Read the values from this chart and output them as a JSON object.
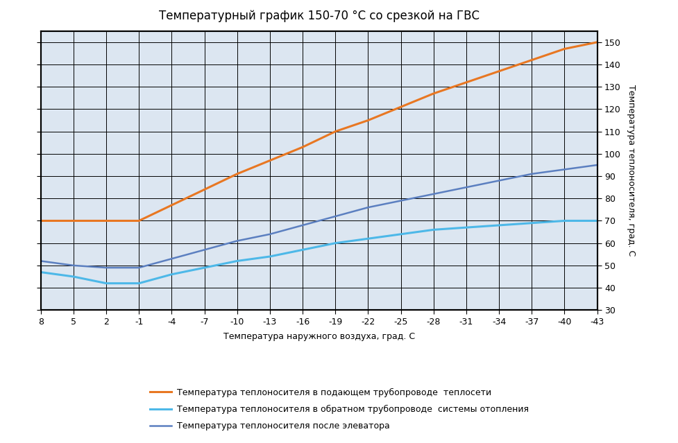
{
  "title": "Температурный график 150-70 °C со срезкой на ГВС",
  "xlabel": "Температура наружного воздуха, град. C",
  "ylabel": "Температура теплоносителя, град. C",
  "x_ticks": [
    8,
    5,
    2,
    -1,
    -4,
    -7,
    -10,
    -13,
    -16,
    -19,
    -22,
    -25,
    -28,
    -31,
    -34,
    -37,
    -40,
    -43
  ],
  "ylim": [
    30,
    155
  ],
  "yticks": [
    30,
    40,
    50,
    60,
    70,
    80,
    90,
    100,
    110,
    120,
    130,
    140,
    150
  ],
  "line1_label": "Температура теплоносителя в подающем трубопроводе  теплосети",
  "line2_label": "Температура теплоносителя в обратном трубопроводе  системы отопления",
  "line3_label": "Температура теплоносителя после элеватора",
  "line1_color": "#E87722",
  "line2_color": "#4DB8E8",
  "line3_color": "#5B7FC0",
  "line1_x": [
    8,
    5,
    2,
    -1,
    -4,
    -7,
    -10,
    -13,
    -16,
    -19,
    -22,
    -25,
    -28,
    -31,
    -34,
    -37,
    -40,
    -43
  ],
  "line1_y": [
    70,
    70,
    70,
    70,
    77,
    84,
    91,
    97,
    103,
    110,
    115,
    121,
    127,
    132,
    137,
    142,
    147,
    150
  ],
  "line2_x": [
    8,
    5,
    2,
    -1,
    -4,
    -7,
    -10,
    -13,
    -16,
    -19,
    -22,
    -25,
    -28,
    -31,
    -34,
    -37,
    -40,
    -43
  ],
  "line2_y": [
    47,
    45,
    42,
    42,
    46,
    49,
    52,
    54,
    57,
    60,
    62,
    64,
    66,
    67,
    68,
    69,
    70,
    70
  ],
  "line3_x": [
    8,
    5,
    2,
    -1,
    -4,
    -7,
    -10,
    -13,
    -16,
    -19,
    -22,
    -25,
    -28,
    -31,
    -34,
    -37,
    -40,
    -43
  ],
  "line3_y": [
    52,
    50,
    49,
    49,
    53,
    57,
    61,
    64,
    68,
    72,
    76,
    79,
    82,
    85,
    88,
    91,
    93,
    95
  ],
  "plot_bg_color": "#DCE6F1",
  "fig_bg_color": "#FFFFFF",
  "grid_color": "#000000",
  "title_fontsize": 12,
  "axis_label_fontsize": 9,
  "tick_fontsize": 9,
  "legend_fontsize": 9
}
